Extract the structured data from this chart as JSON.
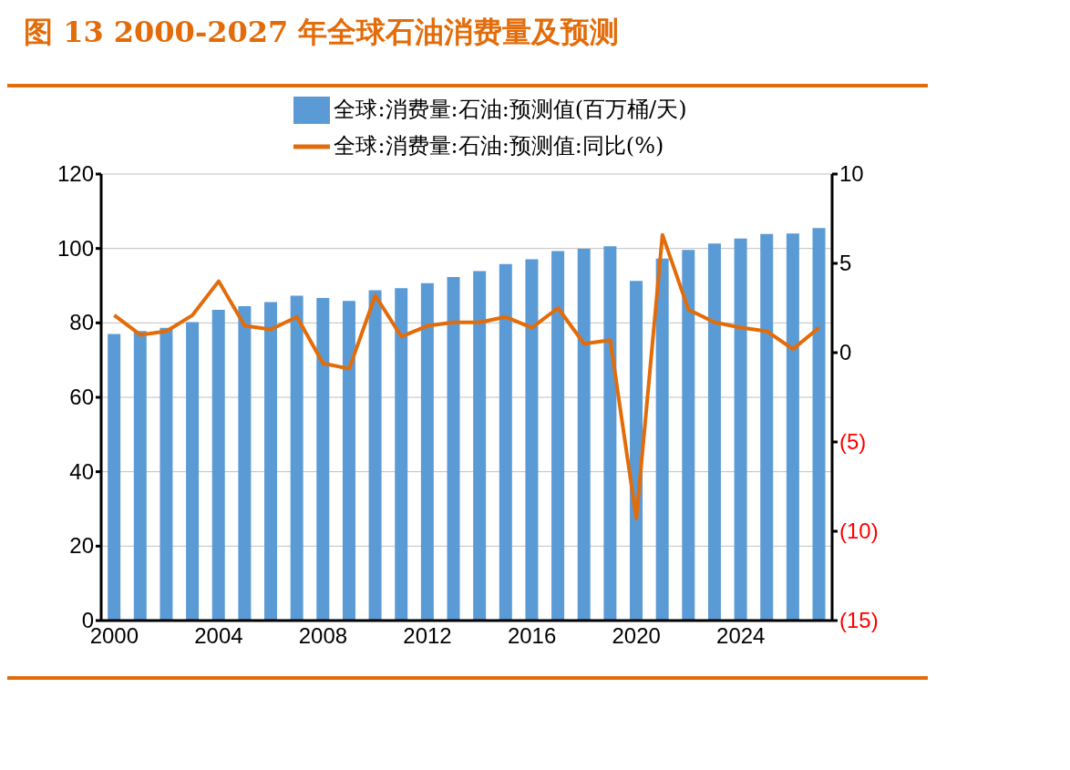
{
  "chart_data": {
    "type": "bar",
    "title": "图 13 2000-2027 年全球石油消费量及预测",
    "categories": [
      "2000",
      null,
      null,
      null,
      "2004",
      null,
      null,
      null,
      "2008",
      null,
      null,
      null,
      "2012",
      null,
      null,
      null,
      "2016",
      null,
      null,
      null,
      "2020",
      null,
      null,
      null,
      "2024",
      null,
      null,
      null
    ],
    "series": [
      {
        "name": "全球:消费量:石油:预测值(百万桶/天)",
        "color": "#5b9bd5",
        "values": [
          77.0,
          77.8,
          78.7,
          80.2,
          83.5,
          84.5,
          85.6,
          87.3,
          86.7,
          85.9,
          88.8,
          89.3,
          90.7,
          92.3,
          93.9,
          95.8,
          97.1,
          99.3,
          99.9,
          100.6,
          91.3,
          97.3,
          99.6,
          101.3,
          102.7,
          103.9,
          104.0,
          105.5
        ]
      },
      {
        "type": "line",
        "name": "全球:消费量:石油:预测值:同比(%)",
        "color": "#e36c0a",
        "axis": "y2",
        "values": [
          2.1,
          1.0,
          1.2,
          2.1,
          4.0,
          1.5,
          1.3,
          2.0,
          -0.6,
          -0.9,
          3.2,
          0.9,
          1.5,
          1.7,
          1.7,
          2.0,
          1.4,
          2.5,
          0.5,
          0.7,
          -9.3,
          6.6,
          2.4,
          1.7,
          1.4,
          1.2,
          0.2,
          1.4
        ]
      }
    ],
    "ylim": [
      0,
      120
    ],
    "yticks": [
      0,
      20,
      40,
      60,
      80,
      100,
      120
    ],
    "y2lim": [
      -15,
      10
    ],
    "y2ticks": [
      {
        "value": -15,
        "label": "(15)"
      },
      {
        "value": -10,
        "label": "(10)"
      },
      {
        "value": -5,
        "label": "(5)"
      },
      0,
      5,
      10
    ],
    "grid": "y",
    "legend": "top"
  }
}
